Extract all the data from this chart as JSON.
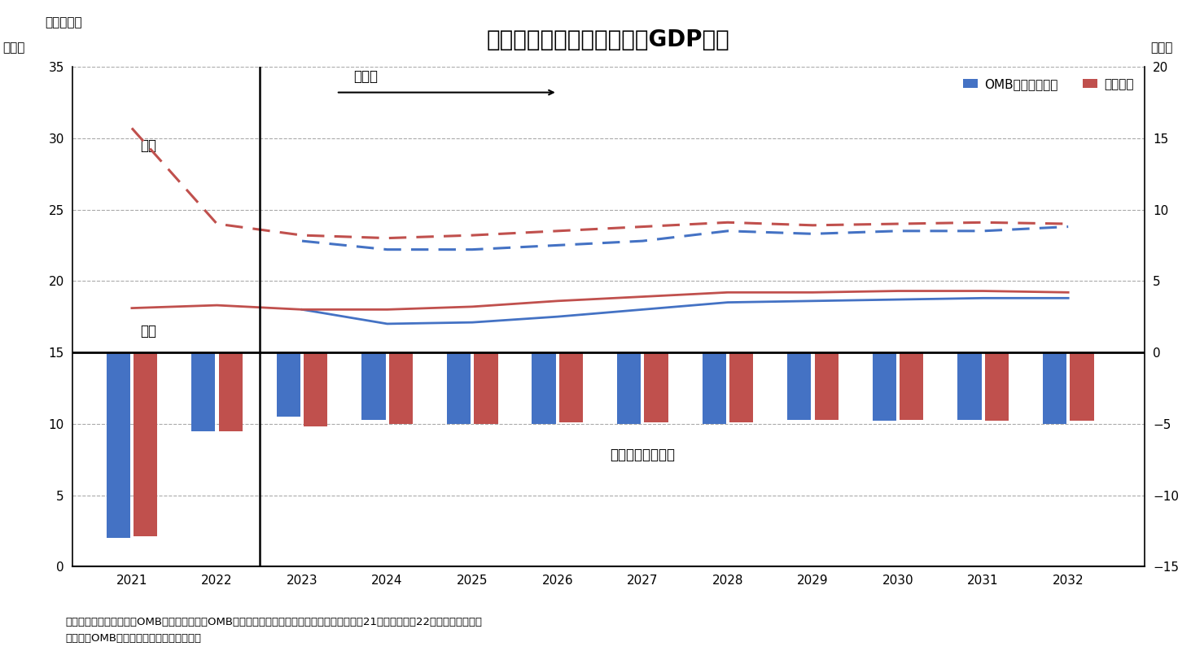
{
  "title": "歳出入、財政収支見通し（GDP比）",
  "fig_label": "（図表１）",
  "years": [
    2021,
    2022,
    2023,
    2024,
    2025,
    2026,
    2027,
    2028,
    2029,
    2030,
    2031,
    2032
  ],
  "expenditure_omb": [
    null,
    null,
    22.8,
    22.2,
    22.2,
    22.5,
    22.8,
    23.5,
    23.3,
    23.5,
    23.5,
    23.8
  ],
  "expenditure_budget": [
    30.7,
    24.0,
    23.2,
    23.0,
    23.2,
    23.5,
    23.8,
    24.1,
    23.9,
    24.0,
    24.1,
    24.0
  ],
  "revenue_omb": [
    null,
    null,
    18.0,
    17.0,
    17.1,
    17.5,
    18.0,
    18.5,
    18.6,
    18.7,
    18.8,
    18.8
  ],
  "revenue_budget": [
    18.1,
    18.3,
    18.0,
    18.0,
    18.2,
    18.6,
    18.9,
    19.2,
    19.2,
    19.3,
    19.3,
    19.2
  ],
  "fiscal_balance_omb": [
    -13.0,
    -5.5,
    -4.5,
    -4.7,
    -5.0,
    -5.0,
    -5.0,
    -5.0,
    -4.7,
    -4.8,
    -4.7,
    -5.0
  ],
  "fiscal_balance_budget": [
    -12.9,
    -5.5,
    -5.2,
    -5.0,
    -5.0,
    -4.9,
    -4.9,
    -4.9,
    -4.7,
    -4.7,
    -4.8,
    -4.8
  ],
  "color_blue": "#4472C4",
  "color_red": "#C0504D",
  "left_ylim": [
    0,
    35
  ],
  "left_yticks": [
    0,
    5,
    10,
    15,
    20,
    25,
    30,
    35
  ],
  "right_ylim": [
    -15,
    20
  ],
  "right_yticks": [
    -15,
    -10,
    -5,
    0,
    5,
    10,
    15,
    20
  ],
  "xlabel_left": "（％）",
  "xlabel_right": "（％）",
  "note1": "（注）行政予算管理局（OMB）による試算、OMBベースラインは現行法を前提にした見通し。21年度は実績、22年度は実績見込み",
  "note2": "（資料）OMBよりニッセイ基礎研究所作成",
  "legend_omb_label": "OMBベースライン",
  "legend_budget_label": "予算教書",
  "label_expenditure": "歳出",
  "label_revenue": "歳入",
  "label_fiscal": "財政収支（右軸）",
  "label_forecast": "見通し"
}
